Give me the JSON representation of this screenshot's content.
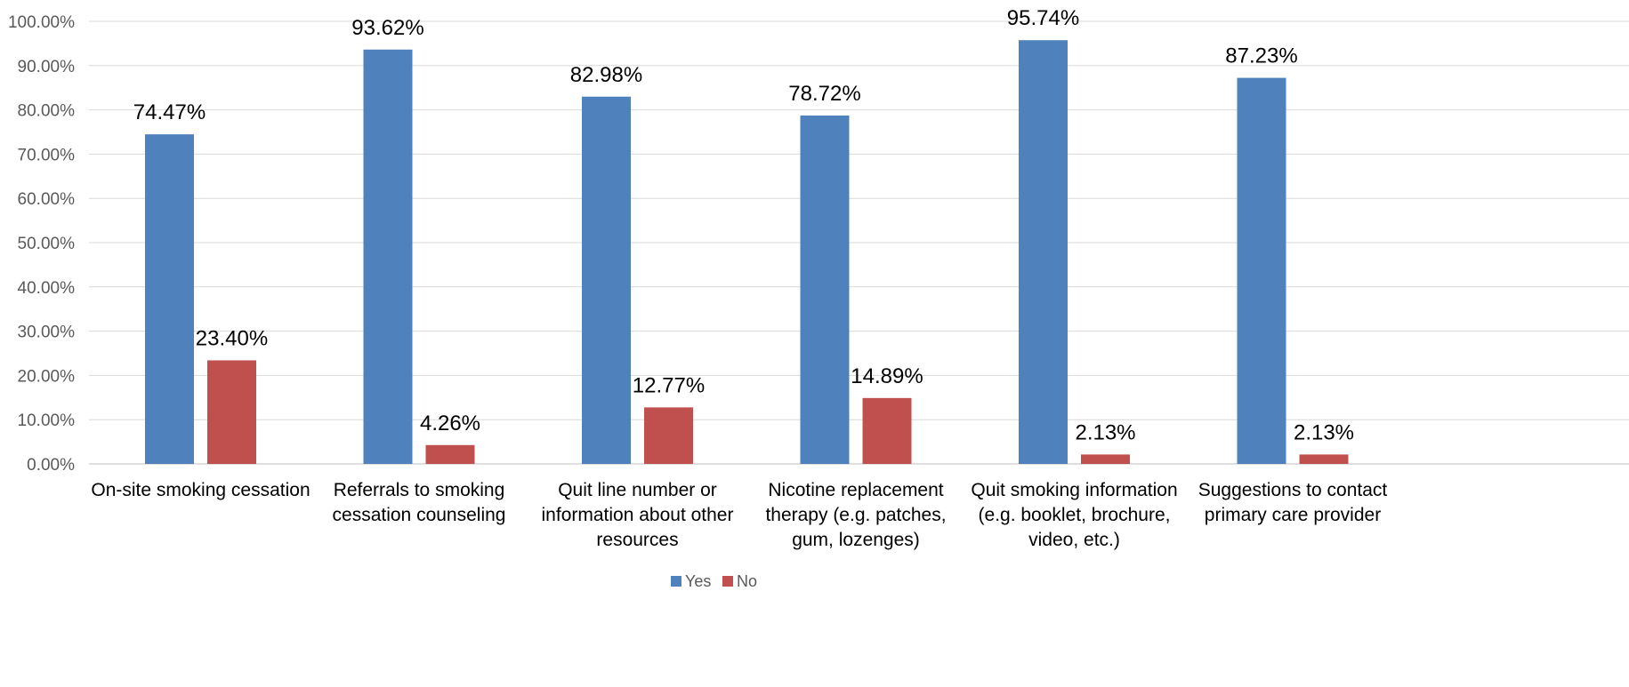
{
  "chart_data": {
    "type": "bar",
    "categories": [
      [
        "On-site smoking cessation"
      ],
      [
        "Referrals to smoking",
        "cessation counseling"
      ],
      [
        "Quit line number or",
        "information about other",
        "resources"
      ],
      [
        "Nicotine replacement",
        "therapy (e.g. patches,",
        "gum, lozenges)"
      ],
      [
        "Quit smoking information",
        "(e.g. booklet, brochure,",
        "video, etc.)"
      ],
      [
        "Suggestions to contact",
        "primary care provider"
      ]
    ],
    "series": [
      {
        "name": "Yes",
        "color": "#4f81bd",
        "values": [
          74.47,
          93.62,
          82.98,
          78.72,
          95.74,
          87.23
        ],
        "labels": [
          "74.47%",
          "93.62%",
          "82.98%",
          "78.72%",
          "95.74%",
          "87.23%"
        ]
      },
      {
        "name": "No",
        "color": "#c0504d",
        "values": [
          23.4,
          4.26,
          12.77,
          14.89,
          2.13,
          2.13
        ],
        "labels": [
          "23.40%",
          "4.26%",
          "12.77%",
          "14.89%",
          "2.13%",
          "2.13%"
        ]
      }
    ],
    "ylim": [
      0,
      100
    ],
    "yticks": [
      "0.00%",
      "10.00%",
      "20.00%",
      "30.00%",
      "40.00%",
      "50.00%",
      "60.00%",
      "70.00%",
      "80.00%",
      "90.00%",
      "100.00%"
    ],
    "title": "",
    "xlabel": "",
    "ylabel": "",
    "grid": true,
    "legend_position": "bottom-center"
  }
}
